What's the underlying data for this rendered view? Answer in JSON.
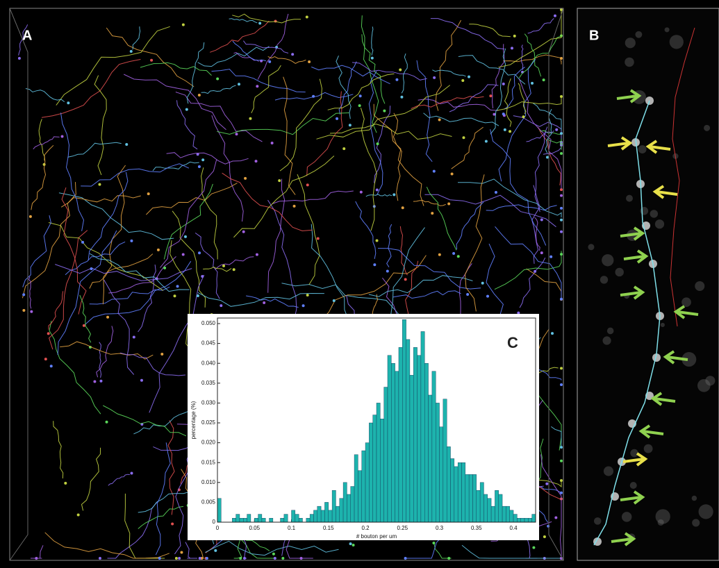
{
  "panels": {
    "a": "A",
    "b": "B"
  },
  "chart_data": {
    "type": "histogram",
    "title": "C",
    "xlabel": "# bouton per um",
    "ylabel": "percentage (%)",
    "color": "#1db3ad",
    "bins": [
      0,
      0.005,
      0.01,
      0.015,
      0.02,
      0.025,
      0.03,
      0.035,
      0.04,
      0.045,
      0.05,
      0.055,
      0.06,
      0.065,
      0.07,
      0.075,
      0.08,
      0.085,
      0.09,
      0.095,
      0.1,
      0.105,
      0.11,
      0.115,
      0.12,
      0.125,
      0.13,
      0.135,
      0.14,
      0.145,
      0.15,
      0.155,
      0.16,
      0.165,
      0.17,
      0.175,
      0.18,
      0.185,
      0.19,
      0.195,
      0.2,
      0.205,
      0.21,
      0.215,
      0.22,
      0.225,
      0.23,
      0.235,
      0.24,
      0.245,
      0.25,
      0.255,
      0.26,
      0.265,
      0.27,
      0.275,
      0.28,
      0.285,
      0.29,
      0.295,
      0.3,
      0.305,
      0.31,
      0.315,
      0.32,
      0.325,
      0.33,
      0.335,
      0.34,
      0.345,
      0.35,
      0.355,
      0.36,
      0.365,
      0.37,
      0.375,
      0.38,
      0.385,
      0.39,
      0.395,
      0.4,
      0.405,
      0.41,
      0.415,
      0.42,
      0.425,
      0.43
    ],
    "values": [
      0.006,
      0,
      0,
      0,
      0.001,
      0.002,
      0.001,
      0.001,
      0.002,
      0,
      0.001,
      0.002,
      0.001,
      0,
      0.001,
      0,
      0,
      0.001,
      0.002,
      0,
      0.003,
      0.002,
      0.001,
      0,
      0.001,
      0.002,
      0.003,
      0.004,
      0.003,
      0.005,
      0.003,
      0.008,
      0.004,
      0.006,
      0.01,
      0.007,
      0.009,
      0.017,
      0.013,
      0.018,
      0.02,
      0.025,
      0.027,
      0.03,
      0.026,
      0.034,
      0.042,
      0.04,
      0.038,
      0.044,
      0.051,
      0.046,
      0.037,
      0.044,
      0.042,
      0.048,
      0.04,
      0.032,
      0.038,
      0.03,
      0.024,
      0.031,
      0.019,
      0.016,
      0.014,
      0.015,
      0.015,
      0.012,
      0.012,
      0.012,
      0.008,
      0.01,
      0.007,
      0.006,
      0.004,
      0.008,
      0.007,
      0.004,
      0.004,
      0.003,
      0.002,
      0.001,
      0.001,
      0.001,
      0.001,
      0.002
    ],
    "xlim": [
      0,
      0.43
    ],
    "ylim": [
      0,
      0.0514
    ],
    "xticks": [
      0,
      0.05,
      {
        "value": 0.1,
        "label": "0.1"
      },
      0.15,
      {
        "value": 0.2,
        "label": "0.2"
      },
      0.25,
      {
        "value": 0.3,
        "label": "0.3"
      },
      0.35,
      {
        "value": 0.4,
        "label": "0.4"
      }
    ],
    "yticks": [
      0,
      0.005,
      {
        "value": 0.01,
        "label": "0.010"
      },
      0.015,
      {
        "value": 0.02,
        "label": "0.020"
      },
      0.025,
      {
        "value": 0.03,
        "label": "0.030"
      },
      0.035,
      {
        "value": 0.04,
        "label": "0.040"
      },
      0.045,
      {
        "value": 0.05,
        "label": "0.050"
      }
    ]
  }
}
